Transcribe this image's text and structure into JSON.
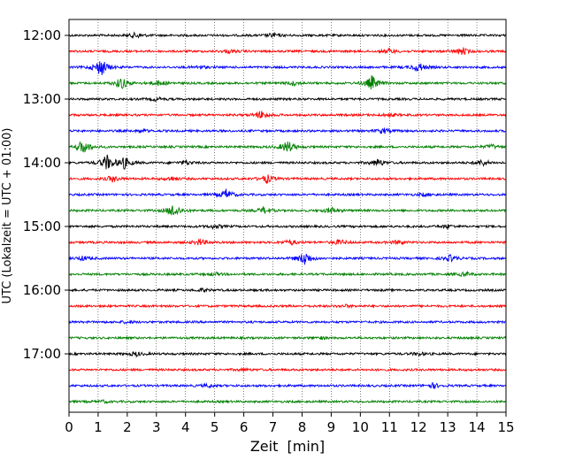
{
  "chart_data": {
    "type": "line",
    "title": "",
    "xlabel": "Zeit  [min]",
    "ylabel": "UTC (Lokalzeit = UTC + 01:00)",
    "xlim": [
      0,
      15
    ],
    "x_ticks": [
      "0",
      "1",
      "2",
      "3",
      "4",
      "5",
      "6",
      "7",
      "8",
      "9",
      "10",
      "11",
      "12",
      "13",
      "14",
      "15"
    ],
    "y_tick_labels": [
      "12:00",
      "13:00",
      "14:00",
      "15:00",
      "16:00",
      "17:00"
    ],
    "grid": {
      "vertical_dotted": true
    },
    "trace_colors_cycle": [
      "#000000",
      "#ff0000",
      "#0000ff",
      "#008000"
    ],
    "trace_interval_minutes": 15,
    "traces": [
      {
        "start": "12:00",
        "color": "#000000",
        "events": [
          [
            2.3,
            0.25
          ],
          [
            7.0,
            0.2
          ]
        ]
      },
      {
        "start": "12:15",
        "color": "#ff0000",
        "events": [
          [
            13.5,
            0.35
          ],
          [
            11.0,
            0.2
          ],
          [
            5.5,
            0.15
          ]
        ]
      },
      {
        "start": "12:30",
        "color": "#0000ff",
        "events": [
          [
            1.1,
            0.9
          ],
          [
            12.0,
            0.45
          ],
          [
            4.5,
            0.15
          ]
        ]
      },
      {
        "start": "12:45",
        "color": "#008000",
        "events": [
          [
            1.8,
            0.6
          ],
          [
            10.4,
            0.7
          ],
          [
            3.1,
            0.25
          ],
          [
            7.7,
            0.2
          ]
        ]
      },
      {
        "start": "13:00",
        "color": "#000000",
        "events": [
          [
            3.0,
            0.15
          ]
        ]
      },
      {
        "start": "13:15",
        "color": "#ff0000",
        "events": [
          [
            6.6,
            0.4
          ],
          [
            11.0,
            0.15
          ]
        ]
      },
      {
        "start": "13:30",
        "color": "#0000ff",
        "events": [
          [
            10.8,
            0.25
          ],
          [
            2.5,
            0.15
          ]
        ]
      },
      {
        "start": "13:45",
        "color": "#008000",
        "events": [
          [
            0.5,
            0.7
          ],
          [
            7.5,
            0.6
          ],
          [
            14.5,
            0.2
          ]
        ]
      },
      {
        "start": "14:00",
        "color": "#000000",
        "events": [
          [
            1.3,
            0.75
          ],
          [
            1.9,
            0.55
          ],
          [
            10.6,
            0.35
          ],
          [
            14.2,
            0.3
          ],
          [
            4.0,
            0.2
          ]
        ]
      },
      {
        "start": "14:15",
        "color": "#ff0000",
        "events": [
          [
            1.5,
            0.3
          ],
          [
            6.8,
            0.4
          ],
          [
            3.5,
            0.2
          ]
        ]
      },
      {
        "start": "14:30",
        "color": "#0000ff",
        "events": [
          [
            5.4,
            0.5
          ],
          [
            12.2,
            0.15
          ]
        ]
      },
      {
        "start": "14:45",
        "color": "#008000",
        "events": [
          [
            3.6,
            0.7
          ],
          [
            6.7,
            0.3
          ],
          [
            9.0,
            0.3
          ]
        ]
      },
      {
        "start": "15:00",
        "color": "#000000",
        "events": [
          [
            5.0,
            0.2
          ],
          [
            13.0,
            0.15
          ]
        ]
      },
      {
        "start": "15:15",
        "color": "#ff0000",
        "events": [
          [
            4.5,
            0.3
          ],
          [
            7.6,
            0.25
          ],
          [
            9.3,
            0.25
          ],
          [
            11.3,
            0.2
          ]
        ]
      },
      {
        "start": "15:30",
        "color": "#0000ff",
        "events": [
          [
            8.1,
            0.7
          ],
          [
            13.1,
            0.3
          ],
          [
            0.5,
            0.2
          ]
        ]
      },
      {
        "start": "15:45",
        "color": "#008000",
        "events": [
          [
            13.6,
            0.2
          ],
          [
            5.0,
            0.15
          ]
        ]
      },
      {
        "start": "16:00",
        "color": "#000000",
        "events": [
          [
            4.6,
            0.15
          ]
        ]
      },
      {
        "start": "16:15",
        "color": "#ff0000",
        "events": [
          [
            9.5,
            0.1
          ]
        ]
      },
      {
        "start": "16:30",
        "color": "#0000ff",
        "events": [
          [
            2.0,
            0.1
          ]
        ]
      },
      {
        "start": "16:45",
        "color": "#008000",
        "events": [
          [
            8.6,
            0.1
          ]
        ]
      },
      {
        "start": "17:00",
        "color": "#000000",
        "events": [
          [
            2.3,
            0.2
          ],
          [
            12.0,
            0.15
          ]
        ]
      },
      {
        "start": "17:15",
        "color": "#ff0000",
        "events": [
          [
            6.0,
            0.1
          ]
        ]
      },
      {
        "start": "17:30",
        "color": "#0000ff",
        "events": [
          [
            12.5,
            0.25
          ],
          [
            4.8,
            0.15
          ]
        ]
      },
      {
        "start": "17:45",
        "color": "#008000",
        "events": [
          [
            1.2,
            0.1
          ]
        ]
      }
    ]
  }
}
